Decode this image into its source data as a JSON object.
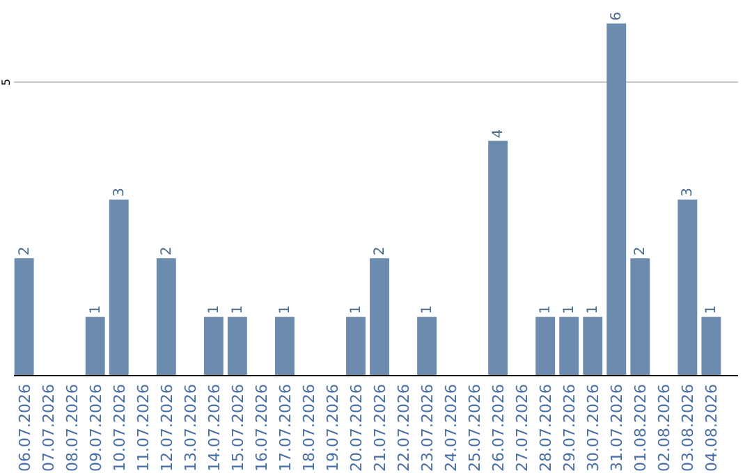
{
  "chart_data": {
    "type": "bar",
    "categories": [
      "06.07.2026",
      "07.07.2026",
      "08.07.2026",
      "09.07.2026",
      "10.07.2026",
      "11.07.2026",
      "12.07.2026",
      "13.07.2026",
      "14.07.2026",
      "15.07.2026",
      "16.07.2026",
      "17.07.2026",
      "18.07.2026",
      "19.07.2026",
      "20.07.2026",
      "21.07.2026",
      "22.07.2026",
      "23.07.2026",
      "24.07.2026",
      "25.07.2026",
      "26.07.2026",
      "27.07.2026",
      "28.07.2026",
      "29.07.2026",
      "30.07.2026",
      "31.07.2026",
      "01.08.2026",
      "02.08.2026",
      "03.08.2026",
      "04.08.2026"
    ],
    "values": [
      2,
      0,
      0,
      1,
      3,
      0,
      2,
      0,
      1,
      1,
      0,
      1,
      0,
      0,
      1,
      2,
      0,
      1,
      0,
      0,
      4,
      0,
      1,
      1,
      1,
      6,
      2,
      0,
      3,
      1
    ],
    "value_labels": [
      "2",
      null,
      null,
      "1",
      "3",
      null,
      "2",
      null,
      "1",
      "1",
      null,
      "1",
      null,
      null,
      "1",
      "2",
      null,
      "1",
      null,
      null,
      "4",
      null,
      "1",
      "1",
      "1",
      "6",
      "2",
      null,
      "3",
      "1"
    ],
    "color": "#6b8cae",
    "ref_lines": [
      {
        "axis": "y",
        "value": 5,
        "label": "5",
        "color": "#c8c8c8"
      }
    ]
  }
}
